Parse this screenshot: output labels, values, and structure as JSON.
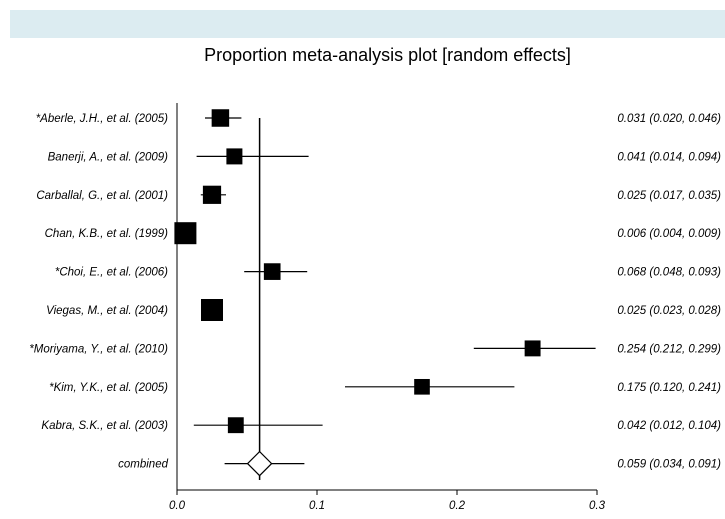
{
  "chart_data": {
    "type": "forest",
    "title": "Proportion meta-analysis plot [random effects]",
    "xlim": [
      0,
      0.3
    ],
    "x_ticks": [
      "0.0",
      "0.1",
      "0.2",
      "0.3"
    ],
    "x_tick_values": [
      0,
      0.1,
      0.2,
      0.3
    ],
    "combined_reference": 0.059,
    "studies": [
      {
        "label": "*Aberle, J.H., et al. (2005)",
        "estimate": 0.031,
        "lower": 0.02,
        "upper": 0.046,
        "ci_text": "0.031 (0.020, 0.046)"
      },
      {
        "label": "Banerji, A., et al. (2009)",
        "estimate": 0.041,
        "lower": 0.014,
        "upper": 0.094,
        "ci_text": "0.041 (0.014, 0.094)"
      },
      {
        "label": "Carballal, G., et al. (2001)",
        "estimate": 0.025,
        "lower": 0.017,
        "upper": 0.035,
        "ci_text": "0.025 (0.017, 0.035)"
      },
      {
        "label": "Chan,  K.B., et al. (1999)",
        "estimate": 0.006,
        "lower": 0.004,
        "upper": 0.009,
        "ci_text": "0.006 (0.004, 0.009)"
      },
      {
        "label": "*Choi,  E., et al. (2006)",
        "estimate": 0.068,
        "lower": 0.048,
        "upper": 0.093,
        "ci_text": "0.068 (0.048, 0.093)"
      },
      {
        "label": "Viegas, M., et al. (2004)",
        "estimate": 0.025,
        "lower": 0.023,
        "upper": 0.028,
        "ci_text": "0.025 (0.023, 0.028)"
      },
      {
        "label": "*Moriyama, Y., et al. (2010)",
        "estimate": 0.254,
        "lower": 0.212,
        "upper": 0.299,
        "ci_text": "0.254 (0.212, 0.299)"
      },
      {
        "label": "*Kim, Y.K., et al. (2005)",
        "estimate": 0.175,
        "lower": 0.12,
        "upper": 0.241,
        "ci_text": "0.175 (0.120, 0.241)"
      },
      {
        "label": "Kabra, S.K., et al. (2003)",
        "estimate": 0.042,
        "lower": 0.012,
        "upper": 0.104,
        "ci_text": "0.042 (0.012, 0.104)"
      }
    ],
    "combined": {
      "label": "combined",
      "estimate": 0.059,
      "lower": 0.034,
      "upper": 0.091,
      "ci_text": "0.059 (0.034, 0.091)"
    }
  }
}
